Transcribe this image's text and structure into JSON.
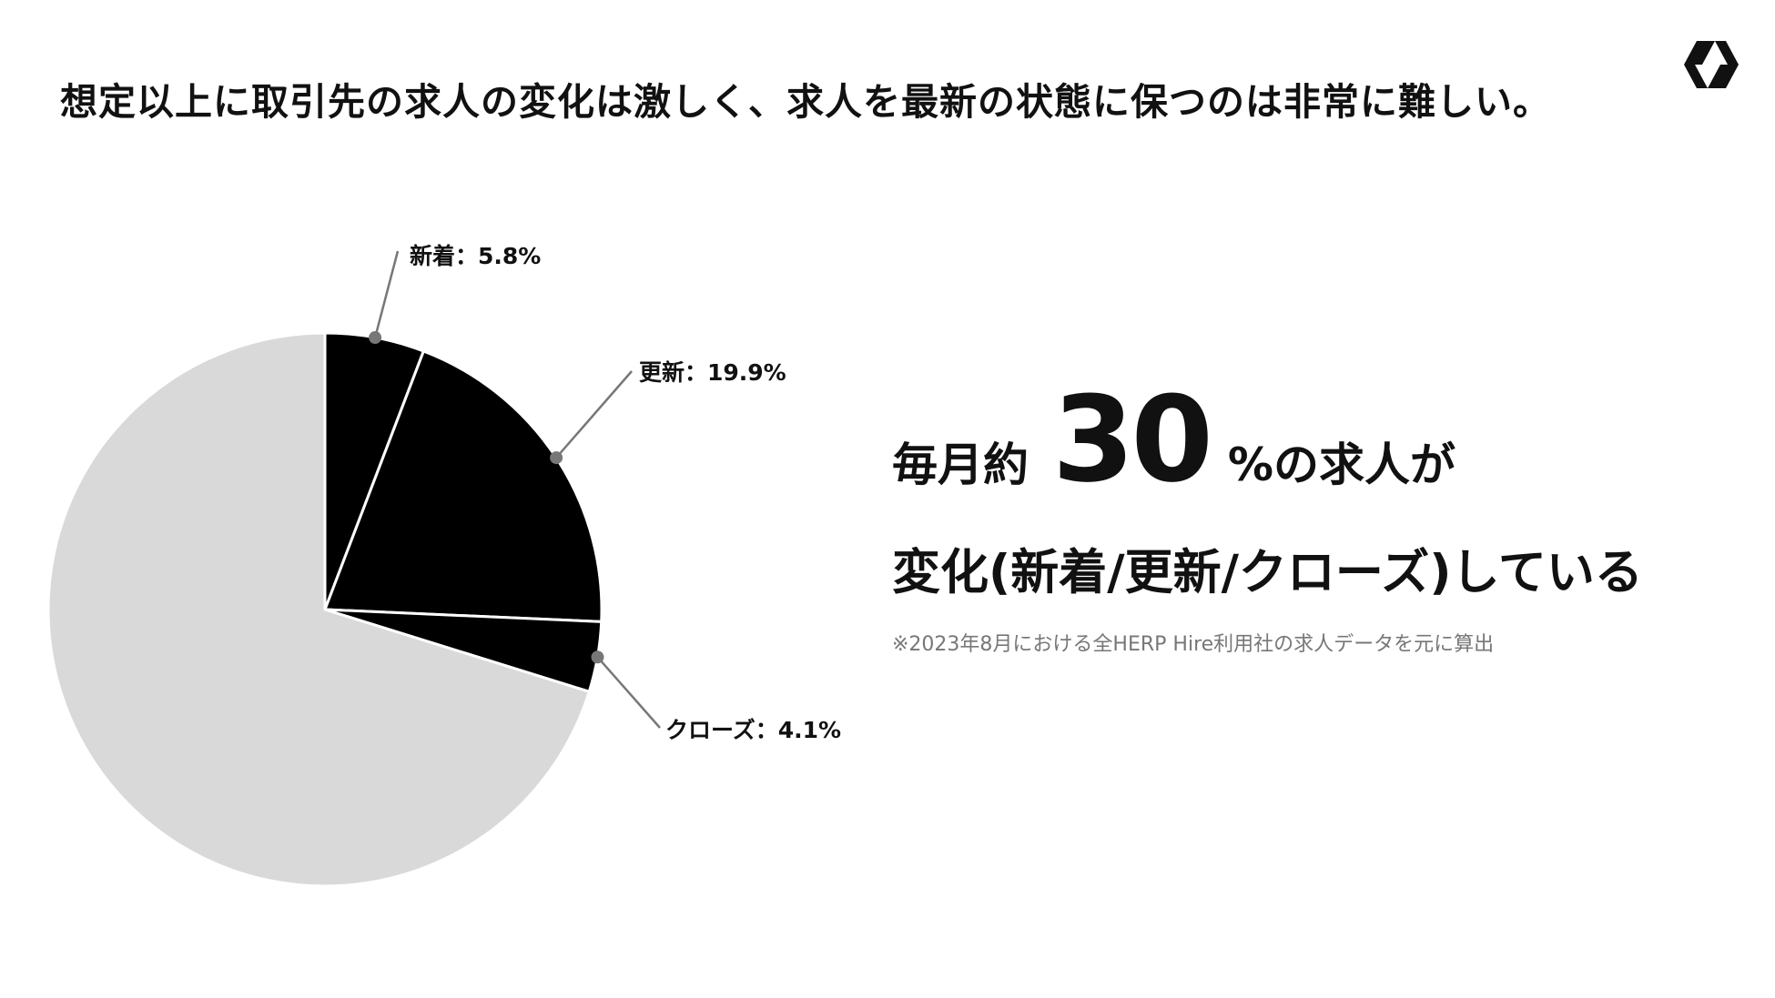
{
  "title": "想定以上に取引先の求人の変化は激しく、求人を最新の状態に保つのは非常に難しい。",
  "headline": {
    "prefix": "毎月約",
    "number": "30",
    "suffix": "%の求人が",
    "line2": "変化(新着/更新/クローズ)している"
  },
  "footnote": "※2023年8月における全HERP Hire利用社の求人データを元に算出",
  "logo_icon": "herp-logo-icon",
  "colors": {
    "highlight_slices": "#000000",
    "remaining_slice": "#d9d9d9",
    "leader_line": "#777777"
  },
  "chart_data": {
    "type": "pie",
    "start": "12 o'clock, clockwise",
    "slices": [
      {
        "label": "新着：5.8%",
        "value": 5.8,
        "color": "#000000"
      },
      {
        "label": "更新：19.9%",
        "value": 19.9,
        "color": "#000000"
      },
      {
        "label": "クローズ：4.1%",
        "value": 4.1,
        "color": "#000000"
      },
      {
        "label": "",
        "value": 70.2,
        "color": "#d9d9d9"
      }
    ]
  }
}
